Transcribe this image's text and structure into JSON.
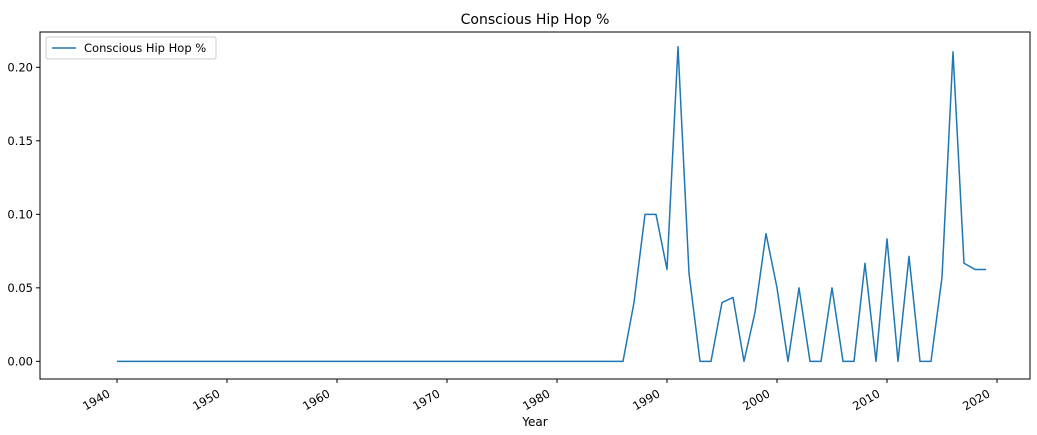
{
  "chart_data": {
    "type": "line",
    "title": "Conscious Hip Hop %",
    "xlabel": "Year",
    "ylabel": "",
    "xlim": [
      1933,
      2023
    ],
    "ylim": [
      -0.012,
      0.224
    ],
    "x_ticks": [
      1940,
      1950,
      1960,
      1970,
      1980,
      1990,
      2000,
      2010,
      2020
    ],
    "x_tick_labels": [
      "1940",
      "1950",
      "1960",
      "1970",
      "1980",
      "1990",
      "2000",
      "2010",
      "2020"
    ],
    "y_ticks": [
      0.0,
      0.05,
      0.1,
      0.15,
      0.2
    ],
    "y_tick_labels": [
      "0.00",
      "0.05",
      "0.10",
      "0.15",
      "0.20"
    ],
    "grid": false,
    "legend_position": "top-left",
    "series": [
      {
        "name": "Conscious Hip Hop %",
        "color": "#1f77b4",
        "x": [
          1940,
          1941,
          1942,
          1943,
          1944,
          1945,
          1946,
          1947,
          1948,
          1949,
          1950,
          1951,
          1952,
          1953,
          1954,
          1955,
          1956,
          1957,
          1958,
          1959,
          1960,
          1961,
          1962,
          1963,
          1964,
          1965,
          1966,
          1967,
          1968,
          1969,
          1970,
          1971,
          1972,
          1973,
          1974,
          1975,
          1976,
          1977,
          1978,
          1979,
          1980,
          1981,
          1982,
          1983,
          1984,
          1985,
          1986,
          1987,
          1988,
          1989,
          1990,
          1991,
          1992,
          1993,
          1994,
          1995,
          1996,
          1997,
          1998,
          1999,
          2000,
          2001,
          2002,
          2003,
          2004,
          2005,
          2006,
          2007,
          2008,
          2009,
          2010,
          2011,
          2012,
          2013,
          2014,
          2015,
          2016,
          2017,
          2018,
          2019
        ],
        "values": [
          0,
          0,
          0,
          0,
          0,
          0,
          0,
          0,
          0,
          0,
          0,
          0,
          0,
          0,
          0,
          0,
          0,
          0,
          0,
          0,
          0,
          0,
          0,
          0,
          0,
          0,
          0,
          0,
          0,
          0,
          0,
          0,
          0,
          0,
          0,
          0,
          0,
          0,
          0,
          0,
          0,
          0,
          0,
          0,
          0,
          0,
          0,
          0.04,
          0.1,
          0.1,
          0.0625,
          0.214,
          0.06,
          0,
          0,
          0.04,
          0.0435,
          0,
          0.0333,
          0.0869,
          0.05,
          0,
          0.05,
          0,
          0,
          0.05,
          0,
          0,
          0.0667,
          0,
          0.0833,
          0,
          0.0714,
          0,
          0,
          0.0571,
          0.2105,
          0.0667,
          0.0625,
          0.0625
        ]
      }
    ]
  }
}
